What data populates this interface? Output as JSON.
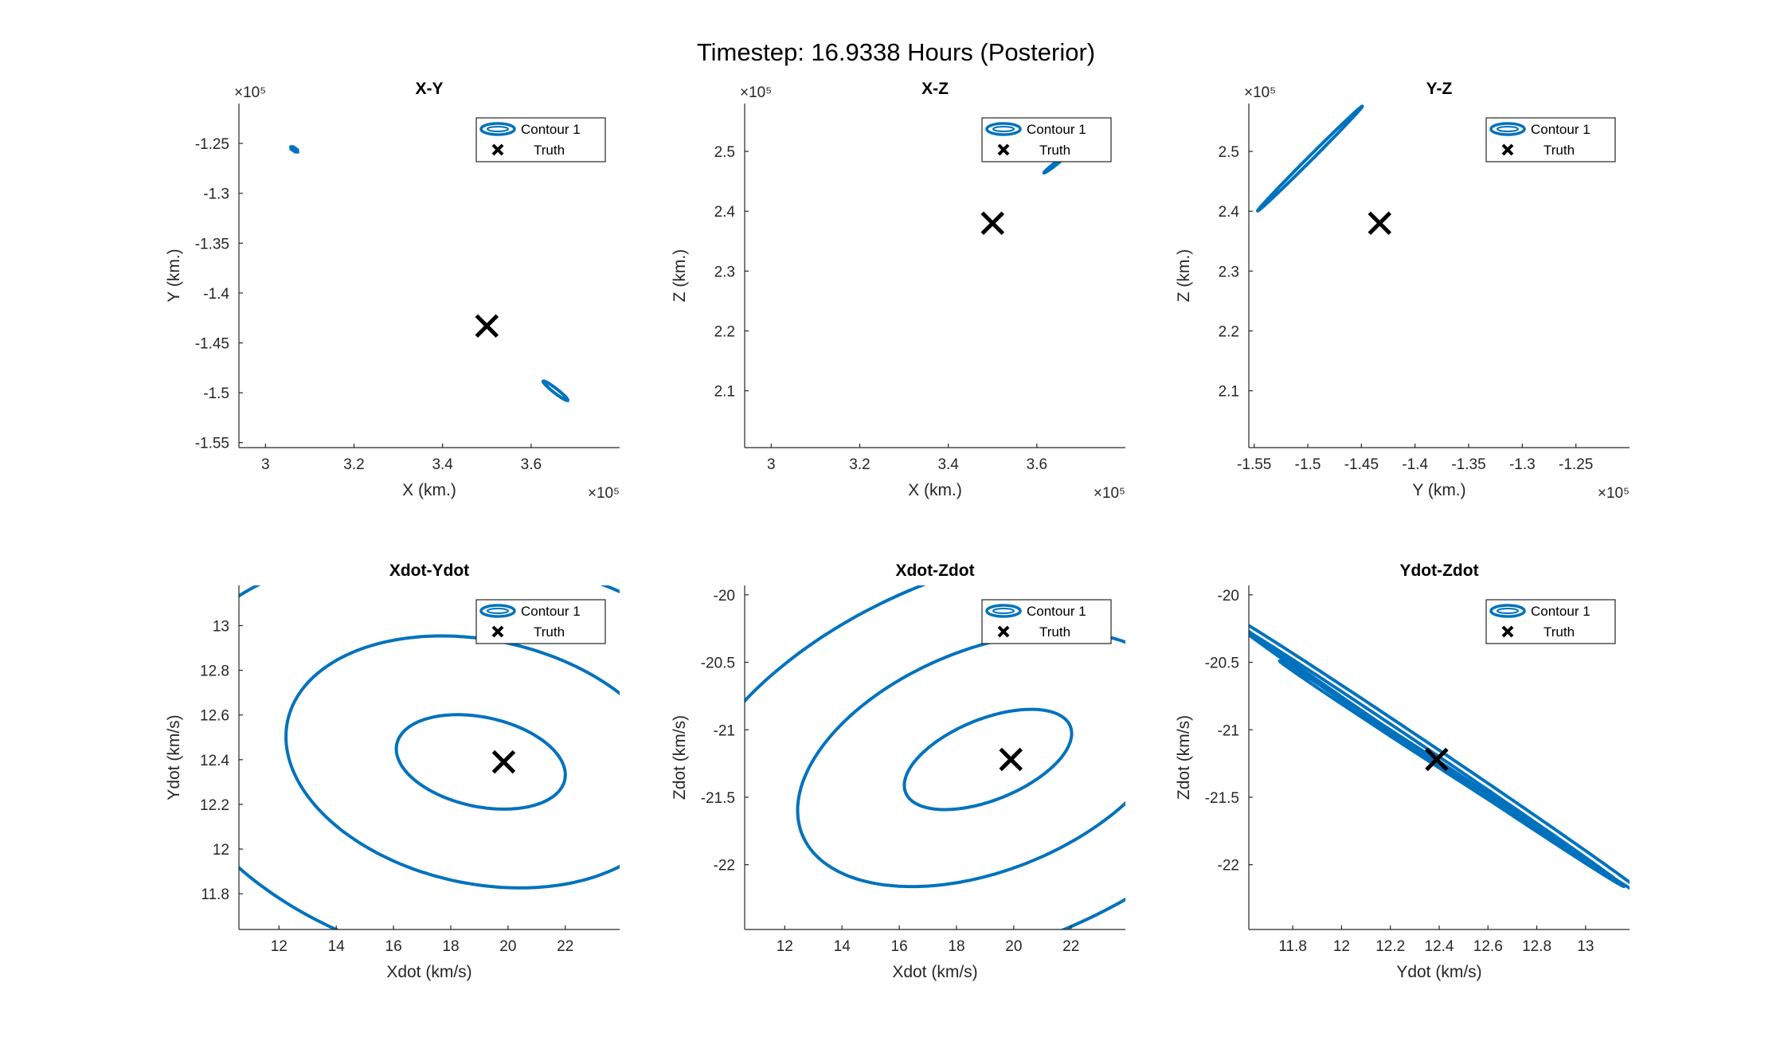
{
  "figure": {
    "suptitle": "Timestep: 16.9338 Hours (Posterior)",
    "colors": {
      "contour": "#0072BD",
      "truth": "#000000",
      "axis": "#262626"
    }
  },
  "chart_data": [
    {
      "type": "line",
      "title": "X-Y",
      "xlabel": "X (km.)",
      "ylabel": "Y (km.)",
      "xlim": [
        294000,
        380000
      ],
      "ylim": [
        -155500,
        -121000
      ],
      "xticks": [
        300000,
        320000,
        340000,
        360000
      ],
      "xtick_labels": [
        "3",
        "3.2",
        "3.4",
        "3.6"
      ],
      "yticks": [
        -155000,
        -150000,
        -145000,
        -140000,
        -135000,
        -130000,
        -125000
      ],
      "ytick_labels": [
        "-1.55",
        "-1.5",
        "-1.45",
        "-1.4",
        "-1.35",
        "-1.3",
        "-1.25"
      ],
      "x_exponent": "×10⁵",
      "y_exponent": "×10⁵",
      "legend": {
        "position": "top-right",
        "entries": [
          "Contour 1",
          "Truth"
        ]
      },
      "truth": {
        "x": 350000,
        "y": -143300
      },
      "contours": [
        {
          "name": "Contour 1",
          "cx": 306500,
          "cy": -125600,
          "rx": 900,
          "ry": 150,
          "angle": -35
        },
        {
          "name": "Contour 1",
          "cx": 365500,
          "cy": -149800,
          "rx": 3500,
          "ry": 220,
          "angle": -38
        }
      ]
    },
    {
      "type": "line",
      "title": "X-Z",
      "xlabel": "X (km.)",
      "ylabel": "Z (km.)",
      "xlim": [
        294000,
        380000
      ],
      "ylim": [
        200500,
        258000
      ],
      "xticks": [
        300000,
        320000,
        340000,
        360000
      ],
      "xtick_labels": [
        "3",
        "3.2",
        "3.4",
        "3.6"
      ],
      "yticks": [
        210000,
        220000,
        230000,
        240000,
        250000
      ],
      "ytick_labels": [
        "2.1",
        "2.2",
        "2.3",
        "2.4",
        "2.5"
      ],
      "x_exponent": "×10⁵",
      "y_exponent": "×10⁵",
      "legend": {
        "position": "top-right",
        "entries": [
          "Contour 1",
          "Truth"
        ]
      },
      "truth": {
        "x": 350000,
        "y": 238000
      },
      "contours": [
        {
          "name": "Contour 1",
          "cx": 364000,
          "cy": 247800,
          "rx": 3000,
          "ry": 200,
          "angle": 38
        }
      ]
    },
    {
      "type": "line",
      "title": "Y-Z",
      "xlabel": "Y (km.)",
      "ylabel": "Z (km.)",
      "xlim": [
        -155500,
        -120000
      ],
      "ylim": [
        200500,
        258000
      ],
      "xticks": [
        -155000,
        -150000,
        -145000,
        -140000,
        -135000,
        -130000,
        -125000
      ],
      "xtick_labels": [
        "-1.55",
        "-1.5",
        "-1.45",
        "-1.4",
        "-1.35",
        "-1.3",
        "-1.25"
      ],
      "yticks": [
        210000,
        220000,
        230000,
        240000,
        250000
      ],
      "ytick_labels": [
        "2.1",
        "2.2",
        "2.3",
        "2.4",
        "2.5"
      ],
      "x_exponent": "×10⁵",
      "y_exponent": "×10⁵",
      "legend": {
        "position": "top-right",
        "entries": [
          "Contour 1",
          "Truth"
        ]
      },
      "truth": {
        "x": -143300,
        "y": 238000
      },
      "contours": [
        {
          "name": "Contour 1",
          "cx": -149800,
          "cy": 248800,
          "rx": 6900,
          "ry": 350,
          "angle": 45
        }
      ]
    },
    {
      "type": "line",
      "title": "Xdot-Ydot",
      "xlabel": "Xdot (km/s)",
      "ylabel": "Ydot (km/s)",
      "xlim": [
        10.6,
        23.9
      ],
      "ylim": [
        11.64,
        13.18
      ],
      "xticks": [
        12,
        14,
        16,
        18,
        20,
        22
      ],
      "xtick_labels": [
        "12",
        "14",
        "16",
        "18",
        "20",
        "22"
      ],
      "yticks": [
        11.8,
        12,
        12.2,
        12.4,
        12.6,
        12.8,
        13
      ],
      "ytick_labels": [
        "11.8",
        "12",
        "12.2",
        "12.4",
        "12.6",
        "12.8",
        "13"
      ],
      "legend": {
        "position": "top-right",
        "entries": [
          "Contour 1",
          "Truth"
        ]
      },
      "truth": {
        "x": 19.85,
        "y": 12.39
      },
      "contours": [
        {
          "name": "Contour 1",
          "cx": 19.05,
          "cy": 12.39,
          "rx": 3.0,
          "ry": 0.2,
          "angle": -12
        },
        {
          "name": "Contour 1",
          "cx": 19.05,
          "cy": 12.39,
          "rx": 6.9,
          "ry": 0.545,
          "angle": -12
        },
        {
          "name": "Contour 1",
          "cx": 19.05,
          "cy": 12.39,
          "rx": 11.3,
          "ry": 0.92,
          "angle": -12
        }
      ]
    },
    {
      "type": "line",
      "title": "Xdot-Zdot",
      "xlabel": "Xdot (km/s)",
      "ylabel": "Zdot (km/s)",
      "xlim": [
        10.6,
        23.9
      ],
      "ylim": [
        -22.48,
        -19.93
      ],
      "xticks": [
        12,
        14,
        16,
        18,
        20,
        22
      ],
      "xtick_labels": [
        "12",
        "14",
        "16",
        "18",
        "20",
        "22"
      ],
      "yticks": [
        -22,
        -21.5,
        -21,
        -20.5,
        -20
      ],
      "ytick_labels": [
        "-22",
        "-21.5",
        "-21",
        "-20.5",
        "-20"
      ],
      "legend": {
        "position": "top-right",
        "entries": [
          "Contour 1",
          "Truth"
        ]
      },
      "truth": {
        "x": 19.9,
        "y": -21.22
      },
      "contours": [
        {
          "name": "Contour 1",
          "cx": 19.1,
          "cy": -21.22,
          "rx": 3.1,
          "ry": 0.3,
          "angle": 22
        },
        {
          "name": "Contour 1",
          "cx": 19.1,
          "cy": -21.22,
          "rx": 7.0,
          "ry": 0.82,
          "angle": 22
        },
        {
          "name": "Contour 1",
          "cx": 19.1,
          "cy": -21.22,
          "rx": 11.4,
          "ry": 1.38,
          "angle": 22
        }
      ]
    },
    {
      "type": "line",
      "title": "Ydot-Zdot",
      "xlabel": "Ydot (km/s)",
      "ylabel": "Zdot (km/s)",
      "xlim": [
        11.62,
        13.18
      ],
      "ylim": [
        -22.48,
        -19.93
      ],
      "xticks": [
        11.8,
        12,
        12.2,
        12.4,
        12.6,
        12.8,
        13
      ],
      "xtick_labels": [
        "11.8",
        "12",
        "12.2",
        "12.4",
        "12.6",
        "12.8",
        "13"
      ],
      "yticks": [
        -22,
        -21.5,
        -21,
        -20.5,
        -20
      ],
      "ytick_labels": [
        "-22",
        "-21.5",
        "-21",
        "-20.5",
        "-20"
      ],
      "legend": {
        "position": "top-right",
        "entries": [
          "Contour 1",
          "Truth"
        ]
      },
      "truth": {
        "x": 12.39,
        "y": -21.22
      },
      "contours": [
        {
          "name": "Contour 1",
          "cx": 12.35,
          "cy": -21.2,
          "rx": 0.72,
          "ry": 0.02,
          "angle": -33
        },
        {
          "name": "Contour 1",
          "cx": 12.37,
          "cy": -21.2,
          "rx": 0.95,
          "ry": 0.03,
          "angle": -34
        },
        {
          "name": "Contour 1",
          "cx": 12.4,
          "cy": -21.2,
          "rx": 1.05,
          "ry": 0.04,
          "angle": -34
        }
      ]
    }
  ]
}
